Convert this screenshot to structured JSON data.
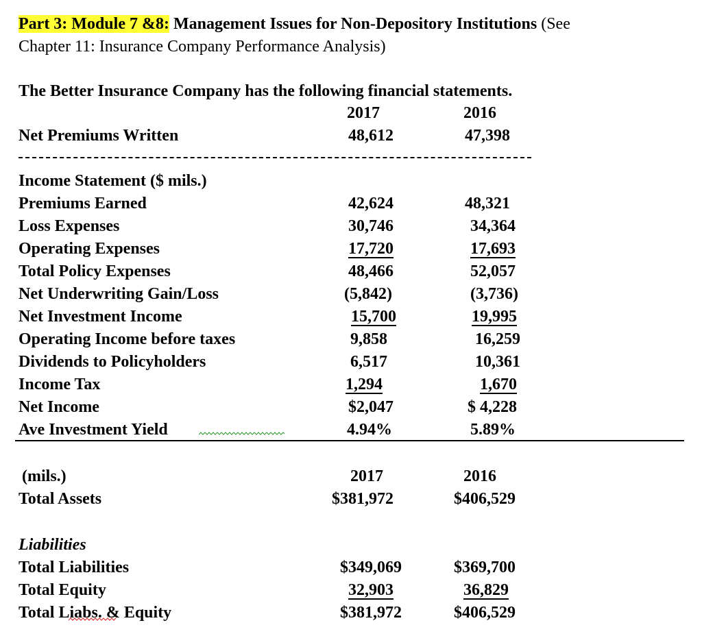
{
  "header": {
    "highlight": "Part 3: Module 7 &8:",
    "title_bold": " Management Issues for Non-Depository Institutions",
    "title_tail": " (See",
    "line2": "Chapter 11: Insurance Company Performance Analysis)"
  },
  "intro": "The Better Insurance Company has the following financial statements.",
  "years": [
    "2017",
    "2016"
  ],
  "net_premiums": {
    "label": "Net Premiums Written",
    "v2017": "48,612",
    "v2016": "47,398"
  },
  "income_statement": {
    "heading": "Income Statement ($ mils.)",
    "rows": [
      {
        "label": "Premiums Earned",
        "v2017": "42,624",
        "v2016": "48,321"
      },
      {
        "label": "Loss Expenses",
        "v2017": "30,746",
        "v2016": "34,364"
      },
      {
        "label": "Operating Expenses",
        "v2017": "17,720",
        "v2016": "17,693"
      },
      {
        "label": "Total Policy Expenses",
        "v2017": "48,466",
        "v2016": "52,057"
      },
      {
        "label": "Net Underwriting Gain/Loss",
        "v2017": "(5,842)",
        "v2016": "(3,736)"
      },
      {
        "label": "Net Investment Income",
        "v2017": "15,700",
        "v2016": "19,995"
      },
      {
        "label": "Operating Income before taxes",
        "v2017": "9,858",
        "v2016": "16,259"
      },
      {
        "label": "Dividends to Policyholders",
        "v2017": "6,517",
        "v2016": "10,361"
      },
      {
        "label": "Income Tax",
        "v2017": "1,294",
        "v2016": "1,670"
      },
      {
        "label": "Net Income",
        "v2017": "$2,047",
        "v2016": "$ 4,228"
      },
      {
        "label": "Ave Investment Yield",
        "v2017": "4.94%",
        "v2016": "5.89%"
      }
    ]
  },
  "balance_sheet": {
    "unit_label": "(mils.)",
    "years": [
      "2017",
      "2016"
    ],
    "total_assets": {
      "label": "Total Assets",
      "v2017": "$381,972",
      "v2016": "$406,529"
    },
    "liabilities_heading": "Liabilities",
    "rows": [
      {
        "label": "Total Liabilities",
        "v2017": "$349,069",
        "v2016": "$369,700"
      },
      {
        "label": "Total Equity",
        "v2017": "32,903",
        "v2016": "36,829"
      },
      {
        "label": "Total Liabs. & Equity",
        "v2017": "$381,972",
        "v2016": "$406,529"
      }
    ]
  },
  "colors": {
    "highlight": "#ffff33",
    "spellcheck_grammar": "#2a9a2a",
    "spellcheck_spelling": "#e02020"
  }
}
